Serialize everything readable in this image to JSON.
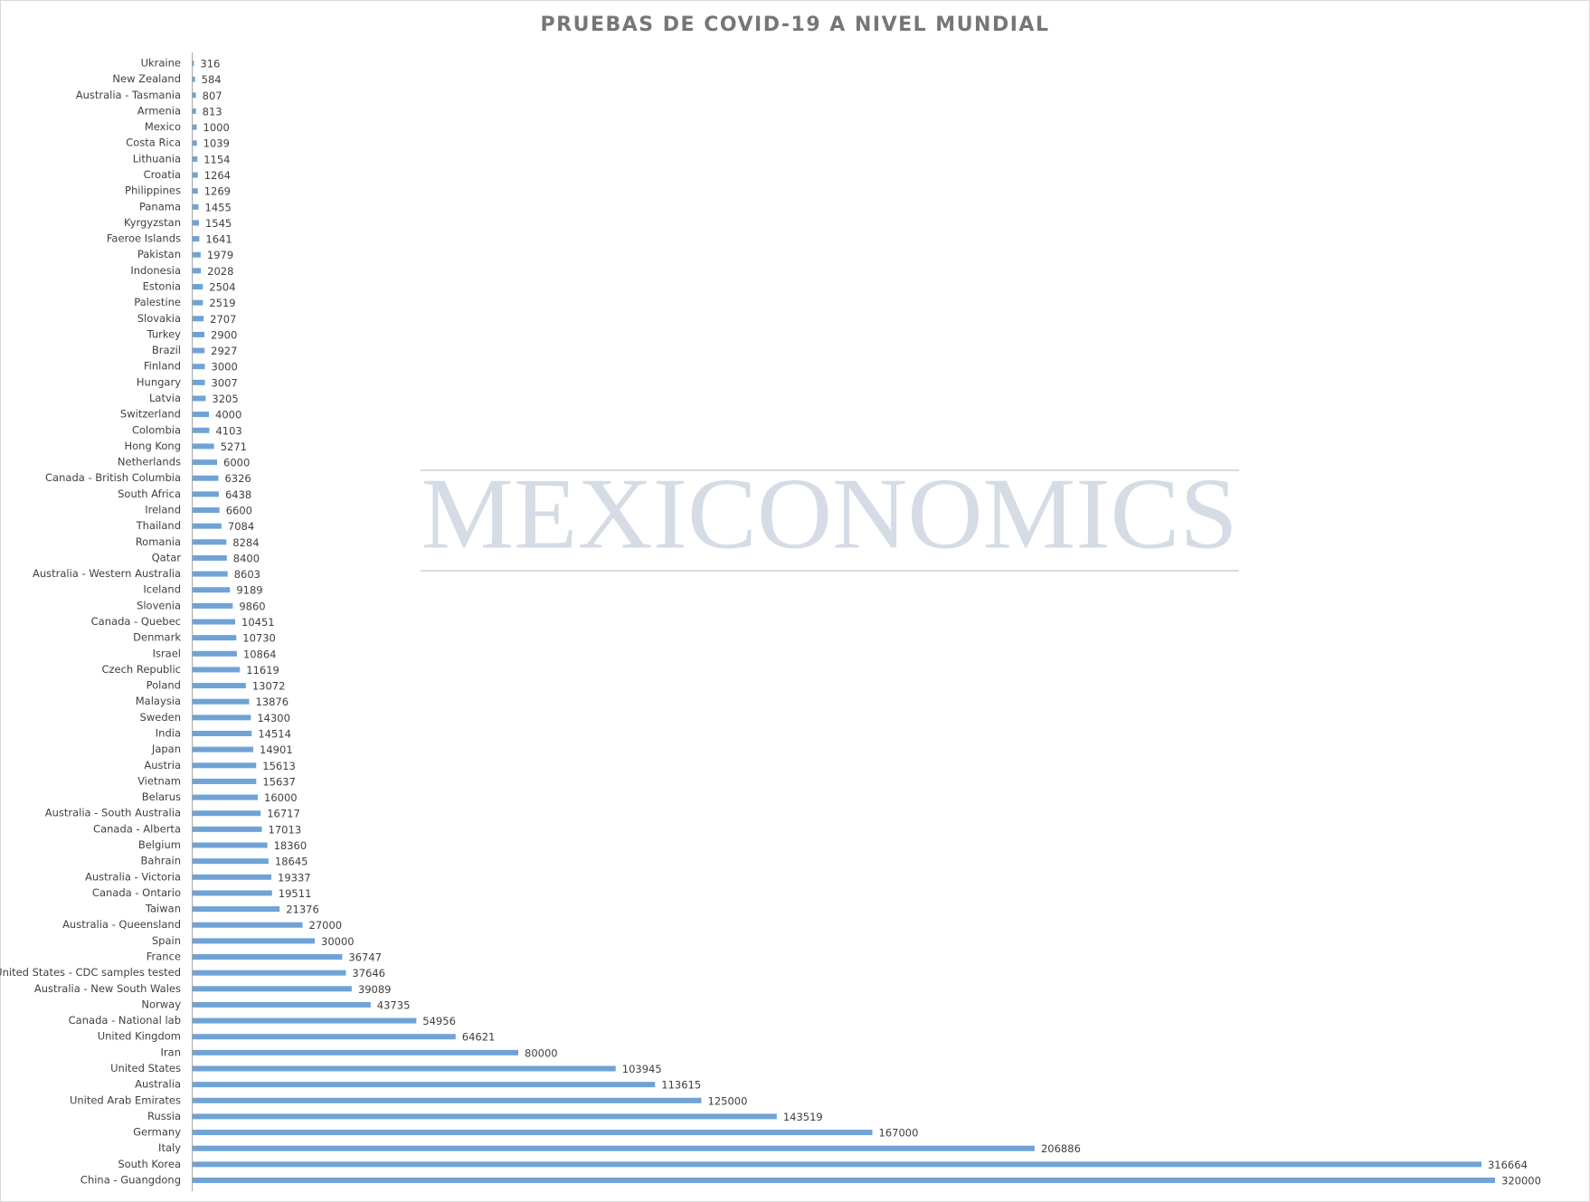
{
  "chart_data": {
    "type": "barh",
    "title": "PRUEBAS DE COVID-19 A NIVEL MUNDIAL",
    "watermark": "MEXICONOMICS",
    "color": "#6fa3d6",
    "categories": [
      "Ukraine",
      "New Zealand",
      "Australia - Tasmania",
      "Armenia",
      "Mexico",
      "Costa Rica",
      "Lithuania",
      "Croatia",
      "Philippines",
      "Panama",
      "Kyrgyzstan",
      "Faeroe Islands",
      "Pakistan",
      "Indonesia",
      "Estonia",
      "Palestine",
      "Slovakia",
      "Turkey",
      "Brazil",
      "Finland",
      "Hungary",
      "Latvia",
      "Switzerland",
      "Colombia",
      "Hong Kong",
      "Netherlands",
      "Canada - British Columbia",
      "South Africa",
      "Ireland",
      "Thailand",
      "Romania",
      "Qatar",
      "Australia - Western Australia",
      "Iceland",
      "Slovenia",
      "Canada - Quebec",
      "Denmark",
      "Israel",
      "Czech Republic",
      "Poland",
      "Malaysia",
      "Sweden",
      "India",
      "Japan",
      "Austria",
      "Vietnam",
      "Belarus",
      "Australia - South Australia",
      "Canada - Alberta",
      "Belgium",
      "Bahrain",
      "Australia - Victoria",
      "Canada - Ontario",
      "Taiwan",
      "Australia - Queensland",
      "Spain",
      "France",
      "United States - CDC samples tested",
      "Australia - New South Wales",
      "Norway",
      "Canada - National lab",
      "United Kingdom",
      "Iran",
      "United States",
      "Australia",
      "United Arab Emirates",
      "Russia",
      "Germany",
      "Italy",
      "South Korea",
      "China - Guangdong"
    ],
    "values": [
      316,
      584,
      807,
      813,
      1000,
      1039,
      1154,
      1264,
      1269,
      1455,
      1545,
      1641,
      1979,
      2028,
      2504,
      2519,
      2707,
      2900,
      2927,
      3000,
      3007,
      3205,
      4000,
      4103,
      5271,
      6000,
      6326,
      6438,
      6600,
      7084,
      8284,
      8400,
      8603,
      9189,
      9860,
      10451,
      10730,
      10864,
      11619,
      13072,
      13876,
      14300,
      14514,
      14901,
      15613,
      15637,
      16000,
      16717,
      17013,
      18360,
      18645,
      19337,
      19511,
      21376,
      27000,
      30000,
      36747,
      37646,
      39089,
      43735,
      54956,
      64621,
      80000,
      103945,
      113615,
      125000,
      143519,
      167000,
      206886,
      316664,
      320000
    ],
    "xlim": [
      0,
      320000
    ]
  }
}
